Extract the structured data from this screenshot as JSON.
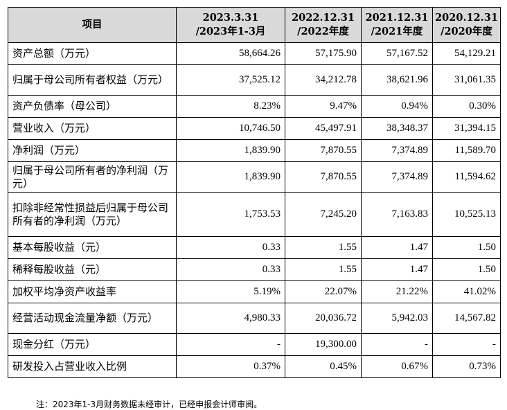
{
  "table": {
    "headers": [
      {
        "lines": [
          "项目"
        ]
      },
      {
        "lines": [
          "2023.3.31",
          "/2023年1-3月"
        ]
      },
      {
        "lines": [
          "2022.12.31",
          "/2022年度"
        ]
      },
      {
        "lines": [
          "2021.12.31",
          "/2021年度"
        ]
      },
      {
        "lines": [
          "2020.12.31",
          "/2020年度"
        ]
      }
    ],
    "rows": [
      {
        "label": "资产总额（万元）",
        "values": [
          "58,664.26",
          "57,175.90",
          "57,167.52",
          "54,129.21"
        ]
      },
      {
        "label": "归属于母公司所有者权益（万元）",
        "values": [
          "37,525.12",
          "34,212.78",
          "38,621.96",
          "31,061.35"
        ]
      },
      {
        "label": "资产负债率（母公司）",
        "values": [
          "8.23%",
          "9.47%",
          "0.94%",
          "0.30%"
        ]
      },
      {
        "label": "营业收入（万元）",
        "values": [
          "10,746.50",
          "45,497.91",
          "38,348.37",
          "31,394.15"
        ]
      },
      {
        "label": "净利润（万元）",
        "values": [
          "1,839.90",
          "7,870.55",
          "7,374.89",
          "11,589.70"
        ]
      },
      {
        "label": "归属于母公司所有者的净利润（万元）",
        "values": [
          "1,839.90",
          "7,870.55",
          "7,374.89",
          "11,594.62"
        ]
      },
      {
        "label": "扣除非经常性损益后归属于母公司所有者的净利润（万元）",
        "values": [
          "1,753.53",
          "7,245.20",
          "7,163.83",
          "10,525.13"
        ]
      },
      {
        "label": "基本每股收益（元）",
        "values": [
          "0.33",
          "1.55",
          "1.47",
          "1.50"
        ]
      },
      {
        "label": "稀释每股收益（元）",
        "values": [
          "0.33",
          "1.55",
          "1.47",
          "1.50"
        ]
      },
      {
        "label": "加权平均净资产收益率",
        "values": [
          "5.19%",
          "22.07%",
          "21.22%",
          "41.02%"
        ]
      },
      {
        "label": "经营活动现金流量净额（万元）",
        "values": [
          "4,980.33",
          "20,036.72",
          "5,942.03",
          "14,567.82"
        ]
      },
      {
        "label": "现金分红（万元）",
        "values": [
          "-",
          "19,300.00",
          "-",
          "-"
        ]
      },
      {
        "label": "研发投入占营业收入比例",
        "values": [
          "0.37%",
          "0.45%",
          "0.67%",
          "0.73%"
        ]
      }
    ]
  },
  "note": "注：2023年1-3月财务数据未经审计，已经申报会计师审阅。"
}
